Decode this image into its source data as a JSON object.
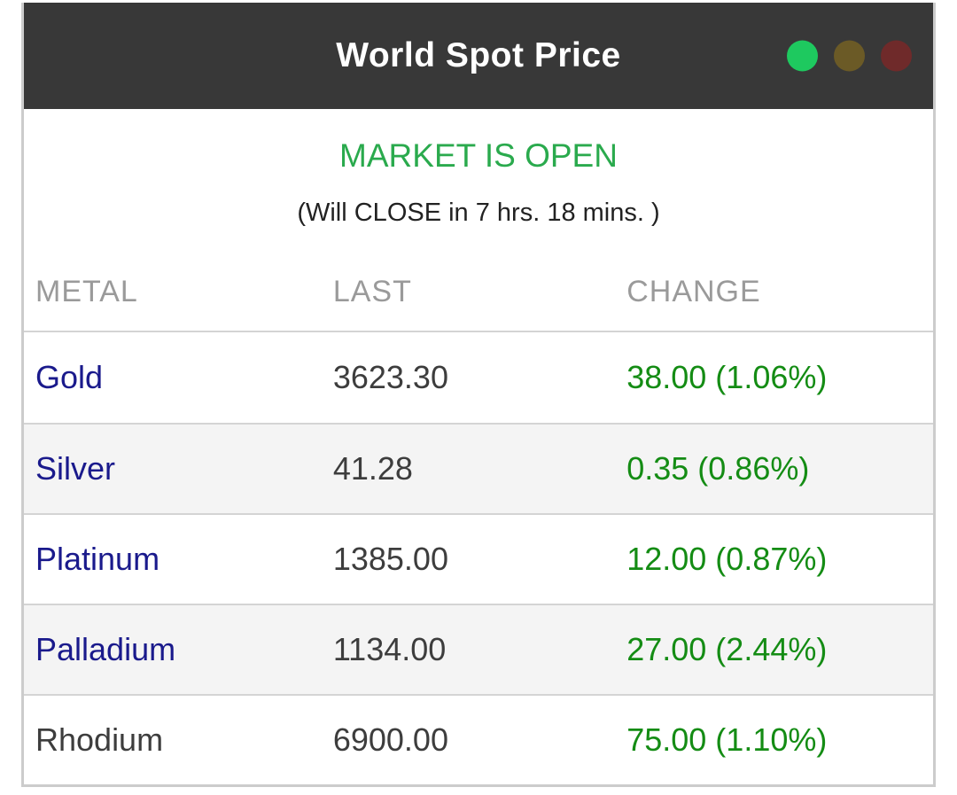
{
  "header": {
    "title": "World Spot Price",
    "status_lights": [
      "open",
      "neutral",
      "closed"
    ]
  },
  "market_status": {
    "status": "MARKET IS OPEN",
    "detail": "(Will CLOSE in 7 hrs. 18 mins. )"
  },
  "table": {
    "columns": [
      "METAL",
      "LAST",
      "CHANGE"
    ],
    "rows": [
      {
        "metal": "Gold",
        "last": "3623.30",
        "change": "38.00 (1.06%)"
      },
      {
        "metal": "Silver",
        "last": "41.28",
        "change": "0.35 (0.86%)"
      },
      {
        "metal": "Platinum",
        "last": "1385.00",
        "change": "12.00 (0.87%)"
      },
      {
        "metal": "Palladium",
        "last": "1134.00",
        "change": "27.00 (2.44%)"
      },
      {
        "metal": "Rhodium",
        "last": "6900.00",
        "change": "75.00 (1.10%)"
      }
    ]
  },
  "colors": {
    "header_bg": "#383838",
    "status_green": "#2aaa4d",
    "change_green": "#148c14",
    "link_blue": "#1a1a8c",
    "dot_open": "#1ec95f",
    "dot_warn": "#6b5a26",
    "dot_closed": "#6f2a2a",
    "border_gray": "#cccccc",
    "row_divider": "#d4d4d4",
    "alt_row_bg": "#f4f4f4",
    "muted_gray": "#9a9a9a",
    "text_dark": "#3d3d3d",
    "subtitle_dark": "#222222"
  }
}
